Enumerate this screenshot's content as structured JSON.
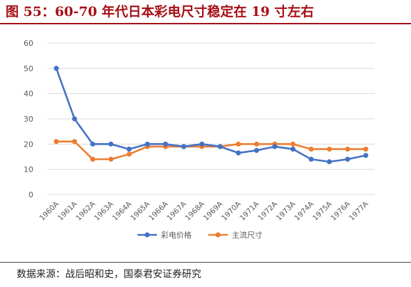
{
  "header": {
    "title": "图 55：60-70 年代日本彩电尺寸稳定在 19 寸左右"
  },
  "footer": {
    "source": "数据来源：战后昭和史，国泰君安证券研究"
  },
  "colors": {
    "title": "#a50f15",
    "price_series": "#4472c4",
    "size_series": "#ed7d31",
    "grid": "#d9d9d9"
  },
  "chart_data": {
    "type": "line",
    "categories": [
      "1960A",
      "1961A",
      "1962A",
      "1963A",
      "1964A",
      "1965A",
      "1966A",
      "1967A",
      "1968A",
      "1969A",
      "1970A",
      "1971A",
      "1972A",
      "1973A",
      "1974A",
      "1975A",
      "1976A",
      "1977A"
    ],
    "series": [
      {
        "name": "彩电价格",
        "color": "#4472c4",
        "values": [
          50,
          30,
          20,
          20,
          18,
          20,
          20,
          19,
          20,
          19,
          16.5,
          17.5,
          19,
          18,
          14,
          13,
          14,
          15.5
        ]
      },
      {
        "name": "主流尺寸",
        "color": "#ed7d31",
        "values": [
          21,
          21,
          14,
          14,
          16,
          19,
          19,
          19,
          19,
          19,
          20,
          20,
          20,
          20,
          18,
          18,
          18,
          18
        ]
      }
    ],
    "ylim": [
      0,
      60
    ],
    "yticks": [
      0,
      10,
      20,
      30,
      40,
      50,
      60
    ],
    "grid": true,
    "legend": "bottom"
  }
}
